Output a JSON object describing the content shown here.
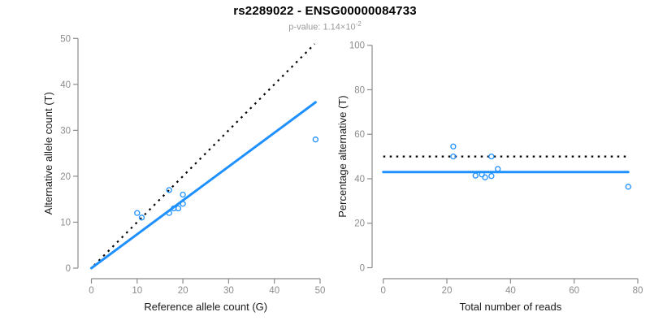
{
  "header": {
    "title": "rs2289022 - ENSG00000084733",
    "subtitle_prefix": "p-value: ",
    "subtitle_value": "1.14×10",
    "subtitle_exponent": "-2"
  },
  "colors": {
    "accent_blue": "#1E90FF",
    "axis_gray": "#8b8b8b",
    "tick_label_gray": "#8c8c8c",
    "axis_title_color": "#1a1a1a",
    "dotted_line_black": "#000000",
    "subtitle_gray": "#9a9a9a"
  },
  "chart_data": [
    {
      "type": "scatter",
      "name": "allele-counts-panel",
      "xlabel": "Reference allele count (G)",
      "ylabel": "Alternative allele count (T)",
      "xlim": [
        0,
        50
      ],
      "ylim": [
        0,
        50
      ],
      "xticks": [
        0,
        10,
        20,
        30,
        40,
        50
      ],
      "yticks": [
        0,
        10,
        20,
        30,
        40,
        50
      ],
      "grid": false,
      "points": [
        [
          10,
          12
        ],
        [
          11,
          11
        ],
        [
          17,
          12
        ],
        [
          17,
          17
        ],
        [
          18,
          13
        ],
        [
          19,
          13
        ],
        [
          20,
          14
        ],
        [
          20,
          16
        ],
        [
          49,
          28
        ]
      ],
      "lines": [
        {
          "name": "identity-line",
          "style": "dotted",
          "color": "#000000",
          "x": [
            0.6,
            48.8
          ],
          "y": [
            0.6,
            48.8
          ]
        },
        {
          "name": "regression-line",
          "style": "solid",
          "color": "#1E90FF",
          "x": [
            0,
            49
          ],
          "y": [
            0,
            36.1
          ]
        }
      ]
    },
    {
      "type": "scatter",
      "name": "percentage-panel",
      "xlabel": "Total number of reads",
      "ylabel": "Percentage alternative (T)",
      "xlim": [
        0,
        80
      ],
      "ylim": [
        0,
        100
      ],
      "xticks": [
        0,
        20,
        40,
        60,
        80
      ],
      "yticks": [
        0,
        20,
        40,
        60,
        80,
        100
      ],
      "grid": false,
      "points": [
        [
          22,
          54.5
        ],
        [
          22,
          50
        ],
        [
          29,
          41.4
        ],
        [
          31,
          41.9
        ],
        [
          32,
          40.6
        ],
        [
          34,
          41.2
        ],
        [
          34,
          50
        ],
        [
          36,
          44.4
        ],
        [
          77,
          36.4
        ]
      ],
      "lines": [
        {
          "name": "fifty-percent-line",
          "style": "dotted",
          "color": "#000000",
          "x": [
            0,
            77
          ],
          "y": [
            50,
            50
          ]
        },
        {
          "name": "mean-percentage-line",
          "style": "solid",
          "color": "#1E90FF",
          "x": [
            0,
            77
          ],
          "y": [
            43,
            43
          ]
        }
      ]
    }
  ]
}
